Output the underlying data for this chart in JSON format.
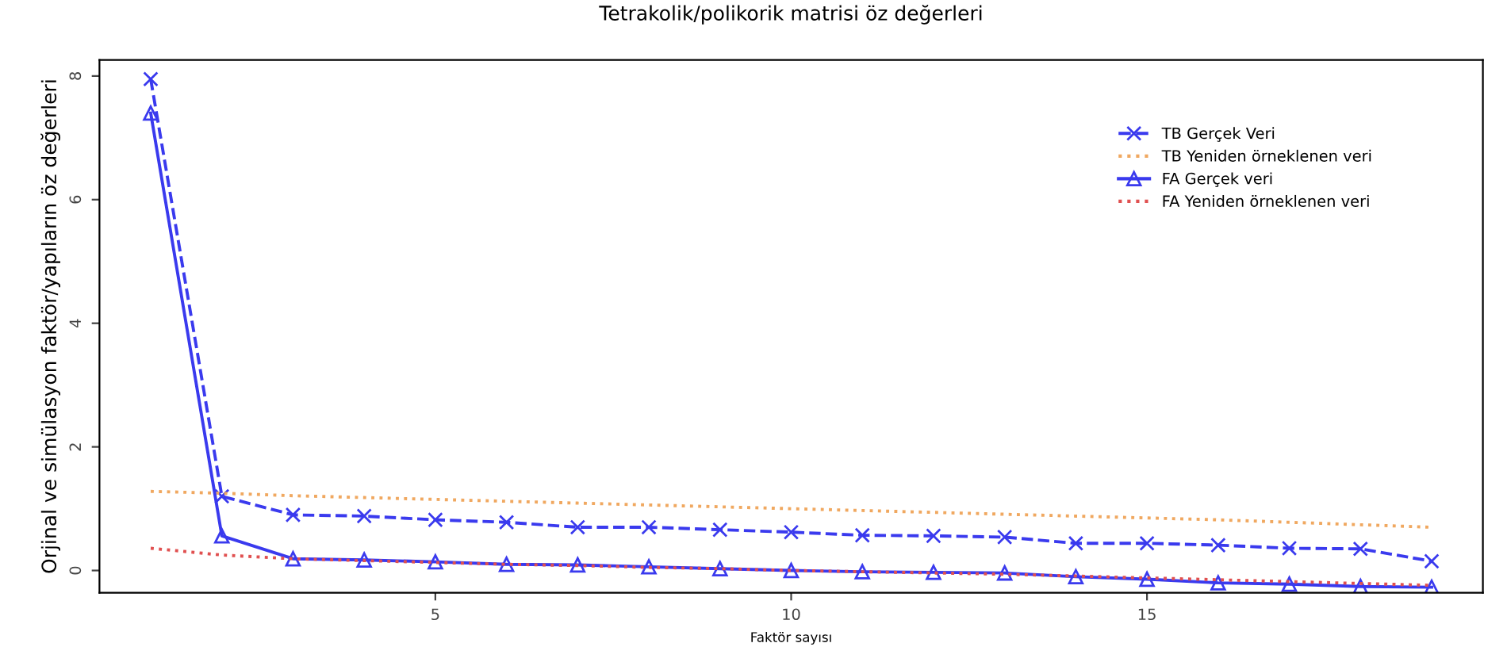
{
  "chart_data": {
    "type": "line",
    "title": "Tetrakolik/polikorik matrisi öz değerleri",
    "xlabel": "Faktör sayısı",
    "ylabel": "Orjinal ve simülasyon faktör/yapıların öz değerleri",
    "x": [
      1,
      2,
      3,
      4,
      5,
      6,
      7,
      8,
      9,
      10,
      11,
      12,
      13,
      14,
      15,
      16,
      17,
      18,
      19
    ],
    "series": [
      {
        "name": "TB Gerçek Veri",
        "color": "#3a3aee",
        "marker": "cross",
        "line_style": "dashed",
        "values": [
          7.95,
          1.2,
          0.9,
          0.88,
          0.82,
          0.78,
          0.7,
          0.7,
          0.66,
          0.62,
          0.57,
          0.56,
          0.54,
          0.44,
          0.44,
          0.41,
          0.36,
          0.35,
          0.15
        ]
      },
      {
        "name": "TB Yeniden örneklenen veri",
        "color": "#f0a860",
        "marker": "none",
        "line_style": "dotted",
        "values": [
          1.28,
          1.25,
          1.21,
          1.18,
          1.15,
          1.12,
          1.09,
          1.06,
          1.03,
          1.0,
          0.97,
          0.94,
          0.91,
          0.88,
          0.85,
          0.82,
          0.78,
          0.74,
          0.7
        ]
      },
      {
        "name": "FA Gerçek veri",
        "color": "#3a3aee",
        "marker": "triangle",
        "line_style": "solid",
        "values": [
          7.4,
          0.56,
          0.19,
          0.17,
          0.14,
          0.1,
          0.09,
          0.06,
          0.03,
          0.0,
          -0.02,
          -0.03,
          -0.04,
          -0.1,
          -0.14,
          -0.2,
          -0.22,
          -0.26,
          -0.27
        ]
      },
      {
        "name": "FA Yeniden örneklenen veri",
        "color": "#e05050",
        "marker": "none",
        "line_style": "dotted",
        "values": [
          0.36,
          0.25,
          0.19,
          0.16,
          0.13,
          0.1,
          0.08,
          0.05,
          0.03,
          0.0,
          -0.02,
          -0.04,
          -0.06,
          -0.09,
          -0.12,
          -0.15,
          -0.18,
          -0.21,
          -0.24
        ]
      }
    ],
    "xlim": [
      0.28,
      19.72
    ],
    "ylim": [
      -0.36,
      8.26
    ],
    "xticks": [
      5,
      10,
      15
    ],
    "yticks": [
      0,
      2,
      4,
      6,
      8
    ],
    "grid": false,
    "legend": "top right"
  }
}
